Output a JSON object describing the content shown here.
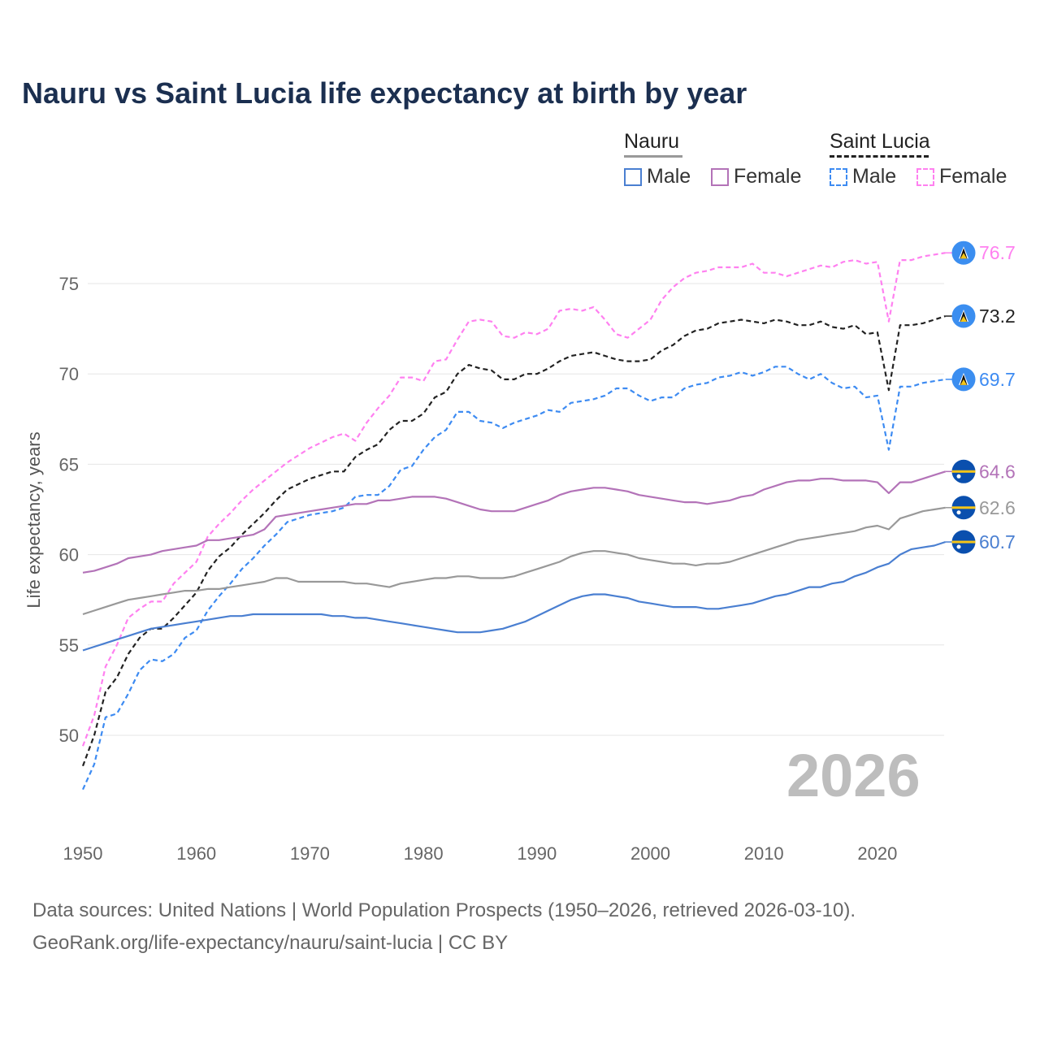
{
  "chart_data": {
    "type": "line",
    "title": "Nauru vs Saint Lucia life expectancy at birth by year",
    "xlabel": "",
    "ylabel": "Life expectancy, years",
    "xlim": [
      1950,
      2026
    ],
    "ylim": [
      45.5,
      78.5
    ],
    "x_ticks": [
      "1950",
      "1960",
      "1970",
      "1980",
      "1990",
      "2000",
      "2010",
      "2020"
    ],
    "y_ticks": [
      "50",
      "55",
      "60",
      "65",
      "70",
      "75"
    ],
    "grid": true,
    "legend": {
      "placement": "top-right",
      "groups": [
        {
          "name": "Nauru",
          "items": [
            "Male",
            "Female"
          ]
        },
        {
          "name": "Saint Lucia",
          "items": [
            "Male",
            "Female"
          ]
        }
      ]
    },
    "watermark_year": "2026",
    "x_start": 1950,
    "series": [
      {
        "name": "Saint Lucia Female",
        "color": "#ff80f0",
        "dashed": true,
        "end_label": "76.7",
        "flag": "saint-lucia",
        "values": [
          49.4,
          51.1,
          53.8,
          55.0,
          56.5,
          57.0,
          57.4,
          57.4,
          58.4,
          59.0,
          59.6,
          61.0,
          61.7,
          62.3,
          63.0,
          63.6,
          64.1,
          64.6,
          65.1,
          65.5,
          65.9,
          66.2,
          66.5,
          66.7,
          66.3,
          67.3,
          68.1,
          68.8,
          69.8,
          69.8,
          69.6,
          70.7,
          70.8,
          71.9,
          72.9,
          73.0,
          72.9,
          72.1,
          72.0,
          72.3,
          72.2,
          72.5,
          73.5,
          73.6,
          73.5,
          73.7,
          73.0,
          72.2,
          72.0,
          72.5,
          73.0,
          74.1,
          74.8,
          75.3,
          75.6,
          75.7,
          75.9,
          75.9,
          75.9,
          76.1,
          75.6,
          75.6,
          75.4,
          75.6,
          75.8,
          76.0,
          75.9,
          76.2,
          76.3,
          76.1,
          76.2,
          72.9,
          76.3,
          76.3,
          76.5,
          76.6,
          76.7
        ]
      },
      {
        "name": "Saint Lucia Total",
        "color": "#222222",
        "dashed": true,
        "end_label": "73.2",
        "flag": "saint-lucia",
        "values": [
          48.3,
          50.0,
          52.4,
          53.2,
          54.5,
          55.4,
          55.9,
          55.9,
          56.5,
          57.2,
          57.9,
          59.1,
          59.9,
          60.4,
          61.1,
          61.7,
          62.3,
          63.0,
          63.6,
          63.9,
          64.2,
          64.4,
          64.6,
          64.6,
          65.4,
          65.8,
          66.1,
          66.9,
          67.4,
          67.4,
          67.8,
          68.7,
          69.0,
          70.0,
          70.5,
          70.3,
          70.2,
          69.7,
          69.7,
          70.0,
          70.0,
          70.3,
          70.7,
          71.0,
          71.1,
          71.2,
          71.0,
          70.8,
          70.7,
          70.7,
          70.8,
          71.3,
          71.6,
          72.1,
          72.4,
          72.5,
          72.8,
          72.9,
          73.0,
          72.9,
          72.8,
          73.0,
          72.9,
          72.7,
          72.7,
          72.9,
          72.6,
          72.5,
          72.7,
          72.2,
          72.3,
          69.1,
          72.7,
          72.7,
          72.8,
          73.0,
          73.2
        ]
      },
      {
        "name": "Saint Lucia Male",
        "color": "#3d8bf2",
        "dashed": true,
        "end_label": "69.7",
        "flag": "saint-lucia",
        "values": [
          47.0,
          48.4,
          51.0,
          51.2,
          52.3,
          53.6,
          54.2,
          54.1,
          54.5,
          55.4,
          55.8,
          56.9,
          57.7,
          58.4,
          59.2,
          59.8,
          60.5,
          61.1,
          61.8,
          62.0,
          62.2,
          62.3,
          62.4,
          62.6,
          63.2,
          63.3,
          63.3,
          63.8,
          64.7,
          64.9,
          65.8,
          66.5,
          66.9,
          67.9,
          67.9,
          67.4,
          67.3,
          67.0,
          67.3,
          67.5,
          67.7,
          68.0,
          67.9,
          68.4,
          68.5,
          68.6,
          68.8,
          69.2,
          69.2,
          68.8,
          68.5,
          68.7,
          68.7,
          69.2,
          69.4,
          69.5,
          69.8,
          69.9,
          70.1,
          69.9,
          70.1,
          70.4,
          70.4,
          70.0,
          69.7,
          70.0,
          69.5,
          69.2,
          69.3,
          68.7,
          68.8,
          65.8,
          69.3,
          69.3,
          69.5,
          69.6,
          69.7
        ]
      },
      {
        "name": "Nauru Female",
        "color": "#b373b8",
        "dashed": false,
        "end_label": "64.6",
        "flag": "nauru",
        "values": [
          59.0,
          59.1,
          59.3,
          59.5,
          59.8,
          59.9,
          60.0,
          60.2,
          60.3,
          60.4,
          60.5,
          60.8,
          60.8,
          60.9,
          61.0,
          61.1,
          61.4,
          62.1,
          62.2,
          62.3,
          62.4,
          62.5,
          62.6,
          62.7,
          62.8,
          62.8,
          63.0,
          63.0,
          63.1,
          63.2,
          63.2,
          63.2,
          63.1,
          62.9,
          62.7,
          62.5,
          62.4,
          62.4,
          62.4,
          62.6,
          62.8,
          63.0,
          63.3,
          63.5,
          63.6,
          63.7,
          63.7,
          63.6,
          63.5,
          63.3,
          63.2,
          63.1,
          63.0,
          62.9,
          62.9,
          62.8,
          62.9,
          63.0,
          63.2,
          63.3,
          63.6,
          63.8,
          64.0,
          64.1,
          64.1,
          64.2,
          64.2,
          64.1,
          64.1,
          64.1,
          64.0,
          63.4,
          64.0,
          64.0,
          64.2,
          64.4,
          64.6
        ]
      },
      {
        "name": "Nauru Total",
        "color": "#999999",
        "dashed": false,
        "end_label": "62.6",
        "flag": "nauru",
        "values": [
          56.7,
          56.9,
          57.1,
          57.3,
          57.5,
          57.6,
          57.7,
          57.8,
          57.9,
          58.0,
          58.0,
          58.1,
          58.1,
          58.2,
          58.3,
          58.4,
          58.5,
          58.7,
          58.7,
          58.5,
          58.5,
          58.5,
          58.5,
          58.5,
          58.4,
          58.4,
          58.3,
          58.2,
          58.4,
          58.5,
          58.6,
          58.7,
          58.7,
          58.8,
          58.8,
          58.7,
          58.7,
          58.7,
          58.8,
          59.0,
          59.2,
          59.4,
          59.6,
          59.9,
          60.1,
          60.2,
          60.2,
          60.1,
          60.0,
          59.8,
          59.7,
          59.6,
          59.5,
          59.5,
          59.4,
          59.5,
          59.5,
          59.6,
          59.8,
          60.0,
          60.2,
          60.4,
          60.6,
          60.8,
          60.9,
          61.0,
          61.1,
          61.2,
          61.3,
          61.5,
          61.6,
          61.4,
          62.0,
          62.2,
          62.4,
          62.5,
          62.6
        ]
      },
      {
        "name": "Nauru Male",
        "color": "#4a7fd1",
        "dashed": false,
        "end_label": "60.7",
        "flag": "nauru",
        "values": [
          54.7,
          54.9,
          55.1,
          55.3,
          55.5,
          55.7,
          55.9,
          56.0,
          56.1,
          56.2,
          56.3,
          56.4,
          56.5,
          56.6,
          56.6,
          56.7,
          56.7,
          56.7,
          56.7,
          56.7,
          56.7,
          56.7,
          56.6,
          56.6,
          56.5,
          56.5,
          56.4,
          56.3,
          56.2,
          56.1,
          56.0,
          55.9,
          55.8,
          55.7,
          55.7,
          55.7,
          55.8,
          55.9,
          56.1,
          56.3,
          56.6,
          56.9,
          57.2,
          57.5,
          57.7,
          57.8,
          57.8,
          57.7,
          57.6,
          57.4,
          57.3,
          57.2,
          57.1,
          57.1,
          57.1,
          57.0,
          57.0,
          57.1,
          57.2,
          57.3,
          57.5,
          57.7,
          57.8,
          58.0,
          58.2,
          58.2,
          58.4,
          58.5,
          58.8,
          59.0,
          59.3,
          59.5,
          60.0,
          60.3,
          60.4,
          60.5,
          60.7
        ]
      }
    ]
  },
  "legend_labels": {
    "nauru": "Nauru",
    "saint_lucia": "Saint Lucia",
    "male": "Male",
    "female": "Female"
  },
  "footer": {
    "line1": "Data sources: United Nations | World Population Prospects (1950–2026, retrieved 2026-03-10).",
    "line2": "GeoRank.org/life-expectancy/nauru/saint-lucia | CC BY"
  }
}
